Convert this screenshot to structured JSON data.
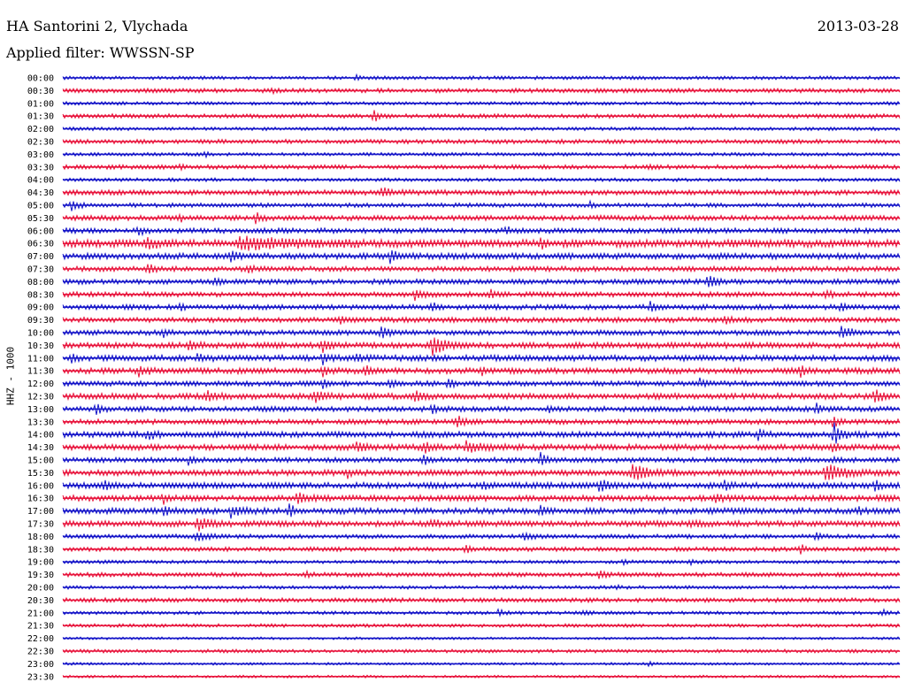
{
  "header": {
    "station": "HA Santorini 2, Vlychada",
    "date": "2013-03-28",
    "filter": "Applied filter: WWSSN-SP"
  },
  "chart_data": {
    "type": "line",
    "title": "HA Santorini 2, Vlychada",
    "subtitle": "Applied filter: WWSSN-SP",
    "date": "2013-03-28",
    "ylabel": "HHZ - 1000",
    "xlabel": "",
    "colors": {
      "odd_row": "#1414c8",
      "even_row": "#e8143c"
    },
    "grid": false,
    "rows": [
      {
        "time": "00:00",
        "noise": 2.0,
        "events": [
          {
            "t": 0.35,
            "a": 4,
            "w": 0.004
          }
        ]
      },
      {
        "time": "00:30",
        "noise": 2.5,
        "events": [
          {
            "t": 0.25,
            "a": 3,
            "w": 0.003
          }
        ]
      },
      {
        "time": "01:00",
        "noise": 2.0,
        "events": []
      },
      {
        "time": "01:30",
        "noise": 2.5,
        "events": [
          {
            "t": 0.37,
            "a": 8,
            "w": 0.006
          }
        ]
      },
      {
        "time": "02:00",
        "noise": 2.0,
        "events": []
      },
      {
        "time": "02:30",
        "noise": 2.5,
        "events": []
      },
      {
        "time": "03:00",
        "noise": 2.0,
        "events": [
          {
            "t": 0.17,
            "a": 3,
            "w": 0.003
          }
        ]
      },
      {
        "time": "03:30",
        "noise": 2.5,
        "events": [
          {
            "t": 0.14,
            "a": 3,
            "w": 0.003
          },
          {
            "t": 0.7,
            "a": 3,
            "w": 0.004
          }
        ]
      },
      {
        "time": "04:00",
        "noise": 2.0,
        "events": []
      },
      {
        "time": "04:30",
        "noise": 3.0,
        "events": [
          {
            "t": 0.38,
            "a": 6,
            "w": 0.01
          }
        ]
      },
      {
        "time": "05:00",
        "noise": 2.5,
        "events": [
          {
            "t": 0.01,
            "a": 6,
            "w": 0.008
          },
          {
            "t": 0.63,
            "a": 4,
            "w": 0.004
          }
        ]
      },
      {
        "time": "05:30",
        "noise": 3.0,
        "events": [
          {
            "t": 0.14,
            "a": 5,
            "w": 0.004
          },
          {
            "t": 0.23,
            "a": 6,
            "w": 0.005
          }
        ]
      },
      {
        "time": "06:00",
        "noise": 3.0,
        "events": [
          {
            "t": 0.09,
            "a": 5,
            "w": 0.006
          },
          {
            "t": 0.53,
            "a": 6,
            "w": 0.004
          }
        ]
      },
      {
        "time": "06:30",
        "noise": 4.5,
        "events": [
          {
            "t": 0.1,
            "a": 6,
            "w": 0.008
          },
          {
            "t": 0.21,
            "a": 6,
            "w": 0.06
          },
          {
            "t": 0.57,
            "a": 6,
            "w": 0.006
          }
        ]
      },
      {
        "time": "07:00",
        "noise": 3.5,
        "events": [
          {
            "t": 0.2,
            "a": 7,
            "w": 0.01
          },
          {
            "t": 0.39,
            "a": 9,
            "w": 0.008
          }
        ]
      },
      {
        "time": "07:30",
        "noise": 3.0,
        "events": [
          {
            "t": 0.1,
            "a": 5,
            "w": 0.01
          },
          {
            "t": 0.22,
            "a": 6,
            "w": 0.005
          }
        ]
      },
      {
        "time": "08:00",
        "noise": 3.0,
        "events": [
          {
            "t": 0.18,
            "a": 5,
            "w": 0.006
          },
          {
            "t": 0.77,
            "a": 8,
            "w": 0.008
          }
        ]
      },
      {
        "time": "08:30",
        "noise": 3.0,
        "events": [
          {
            "t": 0.42,
            "a": 5,
            "w": 0.01
          },
          {
            "t": 0.51,
            "a": 6,
            "w": 0.005
          },
          {
            "t": 0.91,
            "a": 5,
            "w": 0.006
          }
        ]
      },
      {
        "time": "09:00",
        "noise": 3.0,
        "events": [
          {
            "t": 0.14,
            "a": 6,
            "w": 0.003
          },
          {
            "t": 0.44,
            "a": 6,
            "w": 0.005
          },
          {
            "t": 0.7,
            "a": 7,
            "w": 0.006
          },
          {
            "t": 0.93,
            "a": 6,
            "w": 0.004
          }
        ]
      },
      {
        "time": "09:30",
        "noise": 3.0,
        "events": [
          {
            "t": 0.33,
            "a": 5,
            "w": 0.006
          },
          {
            "t": 0.79,
            "a": 5,
            "w": 0.008
          }
        ]
      },
      {
        "time": "10:00",
        "noise": 3.0,
        "events": [
          {
            "t": 0.12,
            "a": 5,
            "w": 0.004
          },
          {
            "t": 0.38,
            "a": 9,
            "w": 0.006
          },
          {
            "t": 0.93,
            "a": 7,
            "w": 0.01
          }
        ]
      },
      {
        "time": "10:30",
        "noise": 3.5,
        "events": [
          {
            "t": 0.15,
            "a": 5,
            "w": 0.008
          },
          {
            "t": 0.31,
            "a": 6,
            "w": 0.008
          },
          {
            "t": 0.44,
            "a": 14,
            "w": 0.012
          }
        ]
      },
      {
        "time": "11:00",
        "noise": 3.5,
        "events": [
          {
            "t": 0.01,
            "a": 6,
            "w": 0.004
          },
          {
            "t": 0.16,
            "a": 6,
            "w": 0.008
          },
          {
            "t": 0.31,
            "a": 7,
            "w": 0.006
          },
          {
            "t": 0.35,
            "a": 5,
            "w": 0.006
          }
        ]
      },
      {
        "time": "11:30",
        "noise": 3.5,
        "events": [
          {
            "t": 0.09,
            "a": 6,
            "w": 0.008
          },
          {
            "t": 0.31,
            "a": 7,
            "w": 0.006
          },
          {
            "t": 0.36,
            "a": 7,
            "w": 0.006
          },
          {
            "t": 0.5,
            "a": 7,
            "w": 0.004
          },
          {
            "t": 0.88,
            "a": 6,
            "w": 0.006
          }
        ]
      },
      {
        "time": "12:00",
        "noise": 3.0,
        "events": [
          {
            "t": 0.31,
            "a": 5,
            "w": 0.006
          },
          {
            "t": 0.39,
            "a": 5,
            "w": 0.006
          },
          {
            "t": 0.46,
            "a": 5,
            "w": 0.006
          },
          {
            "t": 0.76,
            "a": 5,
            "w": 0.006
          }
        ]
      },
      {
        "time": "12:30",
        "noise": 3.5,
        "events": [
          {
            "t": 0.17,
            "a": 6,
            "w": 0.01
          },
          {
            "t": 0.3,
            "a": 6,
            "w": 0.01
          },
          {
            "t": 0.42,
            "a": 5,
            "w": 0.008
          },
          {
            "t": 0.97,
            "a": 6,
            "w": 0.01
          }
        ]
      },
      {
        "time": "13:00",
        "noise": 3.0,
        "events": [
          {
            "t": 0.04,
            "a": 7,
            "w": 0.006
          },
          {
            "t": 0.44,
            "a": 9,
            "w": 0.006
          },
          {
            "t": 0.58,
            "a": 5,
            "w": 0.004
          },
          {
            "t": 0.9,
            "a": 7,
            "w": 0.004
          }
        ]
      },
      {
        "time": "13:30",
        "noise": 3.0,
        "events": [
          {
            "t": 0.47,
            "a": 6,
            "w": 0.008
          },
          {
            "t": 0.92,
            "a": 10,
            "w": 0.004
          }
        ]
      },
      {
        "time": "14:00",
        "noise": 3.5,
        "events": [
          {
            "t": 0.1,
            "a": 6,
            "w": 0.008
          },
          {
            "t": 0.83,
            "a": 6,
            "w": 0.006
          },
          {
            "t": 0.92,
            "a": 14,
            "w": 0.008
          }
        ]
      },
      {
        "time": "14:30",
        "noise": 3.5,
        "events": [
          {
            "t": 0.35,
            "a": 5,
            "w": 0.01
          },
          {
            "t": 0.43,
            "a": 6,
            "w": 0.01
          },
          {
            "t": 0.48,
            "a": 6,
            "w": 0.02
          },
          {
            "t": 0.92,
            "a": 6,
            "w": 0.004
          }
        ]
      },
      {
        "time": "15:00",
        "noise": 3.0,
        "events": [
          {
            "t": 0.15,
            "a": 5,
            "w": 0.004
          },
          {
            "t": 0.43,
            "a": 6,
            "w": 0.006
          },
          {
            "t": 0.57,
            "a": 8,
            "w": 0.008
          },
          {
            "t": 0.92,
            "a": 5,
            "w": 0.004
          }
        ]
      },
      {
        "time": "15:30",
        "noise": 3.5,
        "events": [
          {
            "t": 0.34,
            "a": 6,
            "w": 0.004
          },
          {
            "t": 0.68,
            "a": 8,
            "w": 0.02
          },
          {
            "t": 0.91,
            "a": 9,
            "w": 0.02
          }
        ]
      },
      {
        "time": "16:00",
        "noise": 3.5,
        "events": [
          {
            "t": 0.05,
            "a": 5,
            "w": 0.006
          },
          {
            "t": 0.5,
            "a": 5,
            "w": 0.006
          },
          {
            "t": 0.64,
            "a": 7,
            "w": 0.01
          },
          {
            "t": 0.79,
            "a": 6,
            "w": 0.006
          },
          {
            "t": 0.97,
            "a": 6,
            "w": 0.006
          }
        ]
      },
      {
        "time": "16:30",
        "noise": 3.5,
        "events": [
          {
            "t": 0.12,
            "a": 5,
            "w": 0.006
          },
          {
            "t": 0.28,
            "a": 7,
            "w": 0.01
          },
          {
            "t": 0.78,
            "a": 6,
            "w": 0.008
          }
        ]
      },
      {
        "time": "17:00",
        "noise": 3.5,
        "events": [
          {
            "t": 0.12,
            "a": 5,
            "w": 0.006
          },
          {
            "t": 0.2,
            "a": 6,
            "w": 0.012
          },
          {
            "t": 0.27,
            "a": 8,
            "w": 0.006
          },
          {
            "t": 0.57,
            "a": 7,
            "w": 0.006
          },
          {
            "t": 0.95,
            "a": 5,
            "w": 0.004
          }
        ]
      },
      {
        "time": "17:30",
        "noise": 3.5,
        "events": [
          {
            "t": 0.16,
            "a": 8,
            "w": 0.012
          },
          {
            "t": 0.44,
            "a": 5,
            "w": 0.006
          },
          {
            "t": 0.75,
            "a": 5,
            "w": 0.006
          }
        ]
      },
      {
        "time": "18:00",
        "noise": 2.5,
        "events": [
          {
            "t": 0.16,
            "a": 5,
            "w": 0.01
          },
          {
            "t": 0.55,
            "a": 4,
            "w": 0.008
          },
          {
            "t": 0.9,
            "a": 4,
            "w": 0.006
          }
        ]
      },
      {
        "time": "18:30",
        "noise": 2.5,
        "events": [
          {
            "t": 0.48,
            "a": 4,
            "w": 0.006
          },
          {
            "t": 0.88,
            "a": 6,
            "w": 0.006
          }
        ]
      },
      {
        "time": "19:00",
        "noise": 2.0,
        "events": [
          {
            "t": 0.67,
            "a": 4,
            "w": 0.004
          },
          {
            "t": 0.75,
            "a": 3,
            "w": 0.004
          }
        ]
      },
      {
        "time": "19:30",
        "noise": 2.5,
        "events": [
          {
            "t": 0.29,
            "a": 4,
            "w": 0.004
          },
          {
            "t": 0.64,
            "a": 5,
            "w": 0.008
          }
        ]
      },
      {
        "time": "20:00",
        "noise": 2.0,
        "events": [
          {
            "t": 0.66,
            "a": 3,
            "w": 0.004
          }
        ]
      },
      {
        "time": "20:30",
        "noise": 2.5,
        "events": []
      },
      {
        "time": "21:00",
        "noise": 2.0,
        "events": [
          {
            "t": 0.52,
            "a": 4,
            "w": 0.006
          },
          {
            "t": 0.62,
            "a": 4,
            "w": 0.006
          },
          {
            "t": 0.98,
            "a": 5,
            "w": 0.004
          }
        ]
      },
      {
        "time": "21:30",
        "noise": 2.0,
        "events": []
      },
      {
        "time": "22:00",
        "noise": 1.5,
        "events": []
      },
      {
        "time": "22:30",
        "noise": 2.0,
        "events": []
      },
      {
        "time": "23:00",
        "noise": 1.5,
        "events": [
          {
            "t": 0.7,
            "a": 4,
            "w": 0.004
          }
        ]
      },
      {
        "time": "23:30",
        "noise": 1.5,
        "events": []
      }
    ]
  }
}
